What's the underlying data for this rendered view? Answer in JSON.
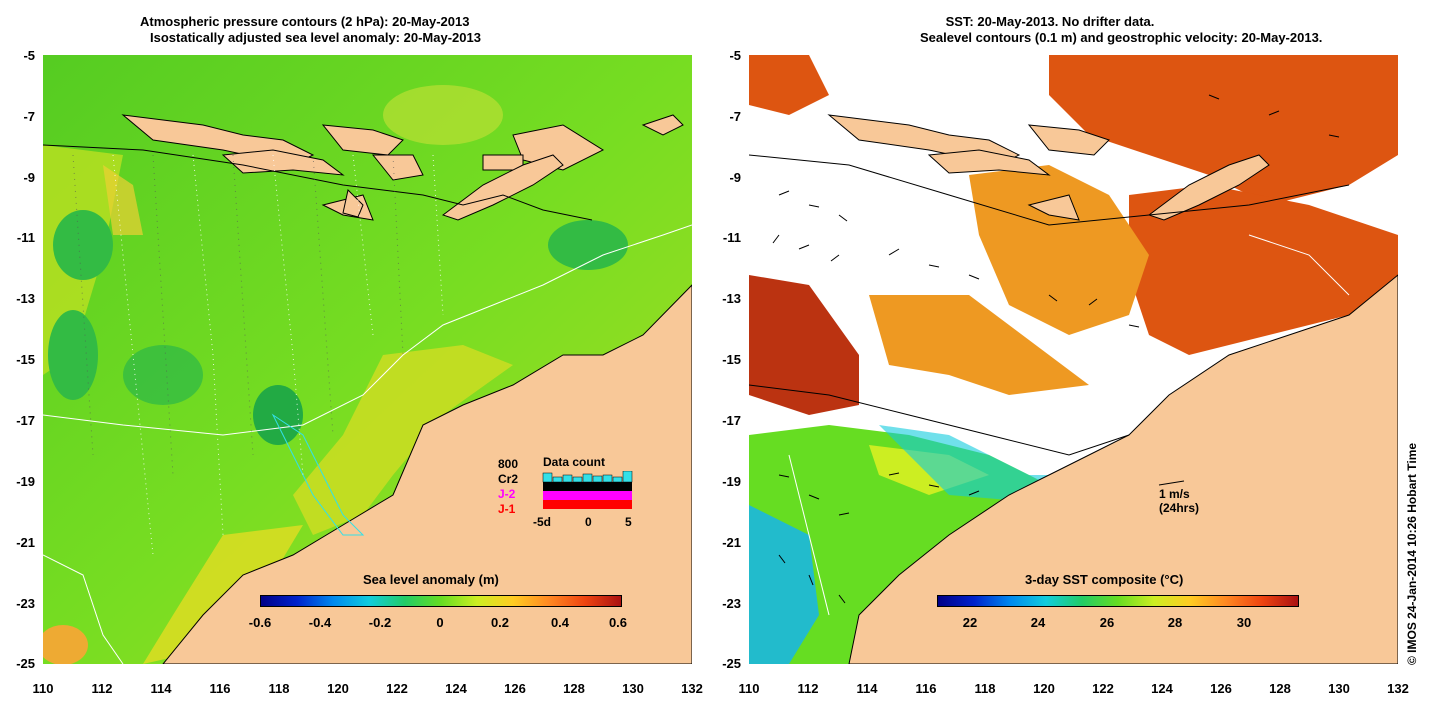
{
  "left_panel": {
    "title_line1": "Atmospheric pressure contours (2 hPa): 20-May-2013",
    "title_line2": "Isostatically adjusted sea level anomaly: 20-May-2013",
    "colorbar_label": "Sea level anomaly (m)",
    "colorbar_ticks": [
      "-0.6",
      "-0.4",
      "-0.2",
      "0",
      "0.2",
      "0.4",
      "0.6"
    ],
    "colorbar_range": [
      -0.6,
      0.6
    ],
    "inset": {
      "title": "Data count",
      "legend": [
        {
          "label": "800",
          "color": "#33e0e8"
        },
        {
          "label": "Cr2",
          "color": "#000000"
        },
        {
          "label": "J-2",
          "color": "#ff00ff"
        },
        {
          "label": "J-1",
          "color": "#ff0000"
        }
      ],
      "x_ticks": [
        "-5d",
        "0",
        "5"
      ]
    }
  },
  "right_panel": {
    "title_line1": "SST: 20-May-2013. No drifter data.",
    "title_line2": "Sealevel contours (0.1 m) and geostrophic velocity: 20-May-2013.",
    "colorbar_label": "3-day SST composite (°C)",
    "colorbar_ticks": [
      "22",
      "24",
      "26",
      "28",
      "30"
    ],
    "colorbar_range": [
      21,
      31.5
    ],
    "scale_label_1": "1 m/s",
    "scale_label_2": "(24hrs)",
    "credit": "© IMOS 24-Jan-2014 10:26 Hobart Time"
  },
  "axes": {
    "y_ticks": [
      "-5",
      "-7",
      "-9",
      "-11",
      "-13",
      "-15",
      "-17",
      "-19",
      "-21",
      "-23",
      "-25"
    ],
    "x_ticks": [
      "110",
      "112",
      "114",
      "116",
      "118",
      "120",
      "122",
      "124",
      "126",
      "128",
      "130",
      "132"
    ],
    "lat_range": [
      -25,
      -5
    ],
    "lon_range": [
      110,
      132
    ]
  },
  "colors": {
    "land": "#f8c898",
    "ocean_green": "#66dd22",
    "ocean_yellow": "#ddee22",
    "cloud_white": "#ffffff"
  }
}
